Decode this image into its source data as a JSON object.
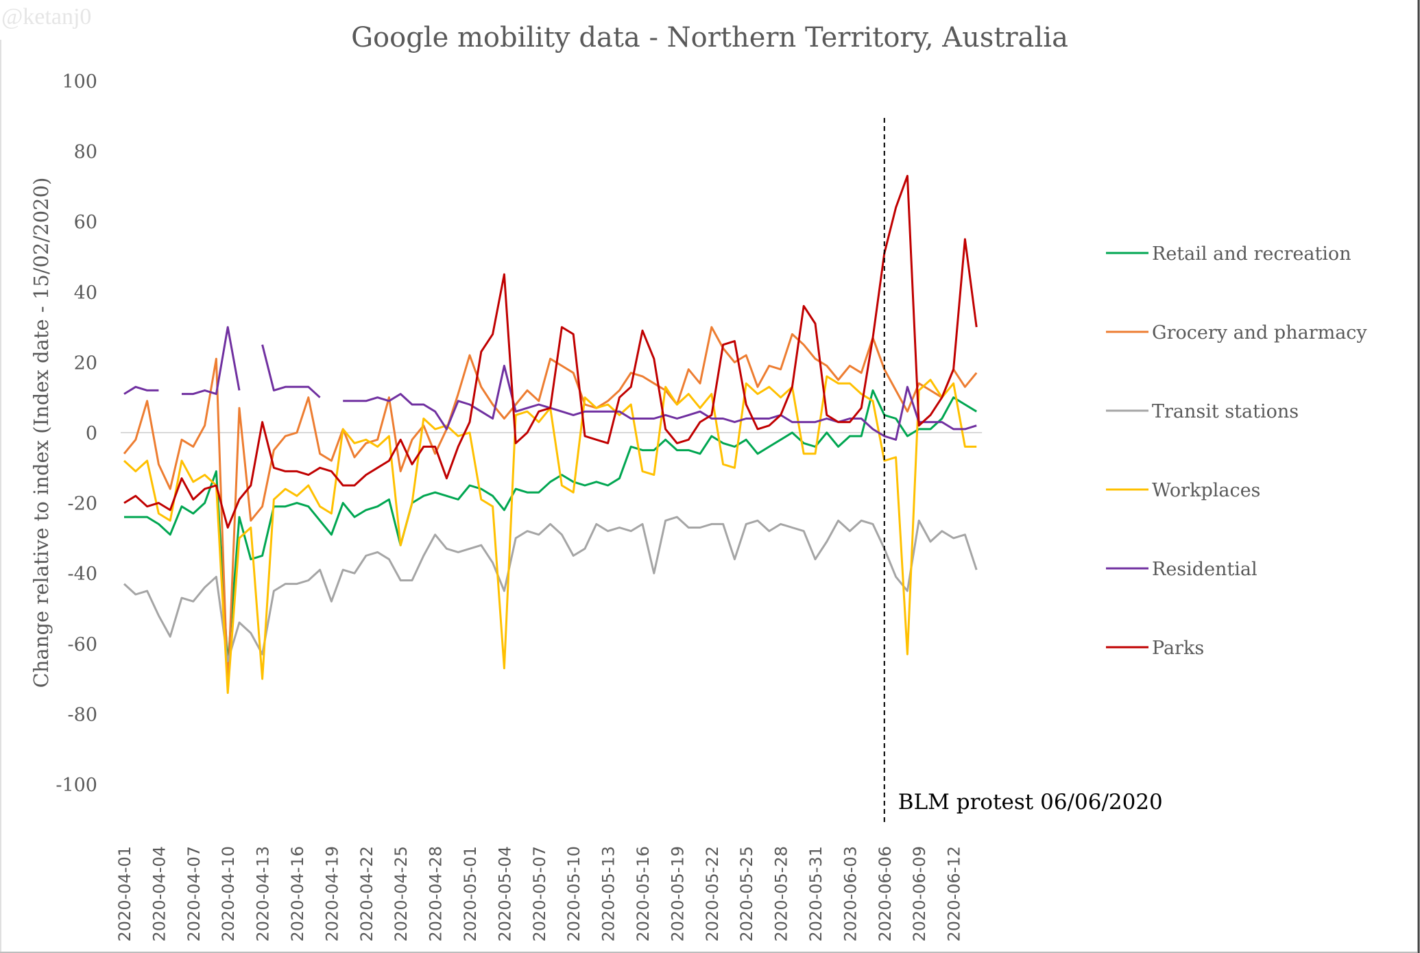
{
  "watermark": "@ketanj0",
  "chart_data": {
    "type": "line",
    "title": "Google mobility data - Northern Territory, Australia",
    "xlabel": "",
    "ylabel": "Change relative to index (Index date - 15/02/2020)",
    "ylim": [
      -100,
      100
    ],
    "yticks": [
      "100",
      "80",
      "60",
      "40",
      "20",
      "0",
      "-20",
      "-40",
      "-60",
      "-80",
      "-100"
    ],
    "ytick_values": [
      100,
      80,
      60,
      40,
      20,
      0,
      -20,
      -40,
      -60,
      -80,
      -100
    ],
    "grid": "zero line only",
    "legend_position": "right",
    "x": [
      "2020-04-01",
      "2020-04-02",
      "2020-04-03",
      "2020-04-04",
      "2020-04-05",
      "2020-04-06",
      "2020-04-07",
      "2020-04-08",
      "2020-04-09",
      "2020-04-10",
      "2020-04-11",
      "2020-04-12",
      "2020-04-13",
      "2020-04-14",
      "2020-04-15",
      "2020-04-16",
      "2020-04-17",
      "2020-04-18",
      "2020-04-19",
      "2020-04-20",
      "2020-04-21",
      "2020-04-22",
      "2020-04-23",
      "2020-04-24",
      "2020-04-25",
      "2020-04-26",
      "2020-04-27",
      "2020-04-28",
      "2020-04-29",
      "2020-04-30",
      "2020-05-01",
      "2020-05-02",
      "2020-05-03",
      "2020-05-04",
      "2020-05-05",
      "2020-05-06",
      "2020-05-07",
      "2020-05-08",
      "2020-05-09",
      "2020-05-10",
      "2020-05-11",
      "2020-05-12",
      "2020-05-13",
      "2020-05-14",
      "2020-05-15",
      "2020-05-16",
      "2020-05-17",
      "2020-05-18",
      "2020-05-19",
      "2020-05-20",
      "2020-05-21",
      "2020-05-22",
      "2020-05-23",
      "2020-05-24",
      "2020-05-25",
      "2020-05-26",
      "2020-05-27",
      "2020-05-28",
      "2020-05-29",
      "2020-05-30",
      "2020-05-31",
      "2020-06-01",
      "2020-06-02",
      "2020-06-03",
      "2020-06-04",
      "2020-06-05",
      "2020-06-06",
      "2020-06-07",
      "2020-06-08",
      "2020-06-09",
      "2020-06-10",
      "2020-06-11",
      "2020-06-12",
      "2020-06-13",
      "2020-06-14"
    ],
    "xtick_labels": [
      "2020-04-01",
      "2020-04-04",
      "2020-04-07",
      "2020-04-10",
      "2020-04-13",
      "2020-04-16",
      "2020-04-19",
      "2020-04-22",
      "2020-04-25",
      "2020-04-28",
      "2020-05-01",
      "2020-05-04",
      "2020-05-07",
      "2020-05-10",
      "2020-05-13",
      "2020-05-16",
      "2020-05-19",
      "2020-05-22",
      "2020-05-25",
      "2020-05-28",
      "2020-05-31",
      "2020-06-03",
      "2020-06-06",
      "2020-06-09",
      "2020-06-12"
    ],
    "series": [
      {
        "name": "Retail and recreation",
        "color": "#00a651",
        "values": [
          -24,
          -24,
          -24,
          -26,
          -29,
          -21,
          -23,
          -20,
          -11,
          -66,
          -24,
          -36,
          -35,
          -21,
          -21,
          -20,
          -21,
          -25,
          -29,
          -20,
          -24,
          -22,
          -21,
          -19,
          -32,
          -20,
          -18,
          -17,
          -18,
          -19,
          -15,
          -16,
          -18,
          -22,
          -16,
          -17,
          -17,
          -14,
          -12,
          -14,
          -15,
          -14,
          -15,
          -13,
          -4,
          -5,
          -5,
          -2,
          -5,
          -5,
          -6,
          -1,
          -3,
          -4,
          -2,
          -6,
          -4,
          -2,
          0,
          -3,
          -4,
          0,
          -4,
          -1,
          -1,
          12,
          5,
          4,
          -1,
          1,
          1,
          4,
          10,
          8,
          6
        ]
      },
      {
        "name": "Grocery and pharmacy",
        "color": "#ed7d31",
        "values": [
          -6,
          -2,
          9,
          -9,
          -16,
          -2,
          -4,
          2,
          21,
          -73,
          7,
          -25,
          -21,
          -5,
          -1,
          0,
          10,
          -6,
          -8,
          1,
          -7,
          -3,
          -2,
          10,
          -11,
          -2,
          2,
          -6,
          1,
          11,
          22,
          13,
          8,
          4,
          8,
          12,
          9,
          21,
          19,
          17,
          8,
          7,
          9,
          12,
          17,
          16,
          14,
          12,
          8,
          18,
          14,
          30,
          24,
          20,
          22,
          13,
          19,
          18,
          28,
          25,
          21,
          19,
          15,
          19,
          17,
          27,
          18,
          12,
          6,
          14,
          12,
          10,
          18,
          13,
          17
        ]
      },
      {
        "name": "Transit stations",
        "color": "#a5a5a5",
        "values": [
          -43,
          -46,
          -45,
          -52,
          -58,
          -47,
          -48,
          -44,
          -41,
          -65,
          -54,
          -57,
          -63,
          -45,
          -43,
          -43,
          -42,
          -39,
          -48,
          -39,
          -40,
          -35,
          -34,
          -36,
          -42,
          -42,
          -35,
          -29,
          -33,
          -34,
          -33,
          -32,
          -37,
          -45,
          -30,
          -28,
          -29,
          -26,
          -29,
          -35,
          -33,
          -26,
          -28,
          -27,
          -28,
          -26,
          -40,
          -25,
          -24,
          -27,
          -27,
          -26,
          -26,
          -36,
          -26,
          -25,
          -28,
          -26,
          -27,
          -28,
          -36,
          -31,
          -25,
          -28,
          -25,
          -26,
          -33,
          -41,
          -45,
          -25,
          -31,
          -28,
          -30,
          -29,
          -39
        ]
      },
      {
        "name": "Workplaces",
        "color": "#ffc000",
        "values": [
          -8,
          -11,
          -8,
          -23,
          -25,
          -8,
          -14,
          -12,
          -15,
          -74,
          -30,
          -27,
          -70,
          -19,
          -16,
          -18,
          -15,
          -21,
          -23,
          1,
          -3,
          -2,
          -4,
          -1,
          -32,
          -20,
          4,
          1,
          2,
          -1,
          0,
          -19,
          -21,
          -67,
          5,
          6,
          3,
          7,
          -15,
          -17,
          10,
          7,
          8,
          5,
          8,
          -11,
          -12,
          13,
          8,
          11,
          7,
          11,
          -9,
          -10,
          14,
          11,
          13,
          10,
          13,
          -6,
          -6,
          16,
          14,
          14,
          11,
          9,
          -8,
          -7,
          -63,
          12,
          15,
          10,
          14,
          -4,
          -4
        ]
      },
      {
        "name": "Residential",
        "color": "#7030a0",
        "values": [
          11,
          13,
          12,
          12,
          null,
          11,
          11,
          12,
          11,
          30,
          12,
          null,
          25,
          12,
          13,
          13,
          13,
          10,
          null,
          9,
          9,
          9,
          10,
          9,
          11,
          8,
          8,
          6,
          1,
          9,
          8,
          6,
          4,
          19,
          6,
          7,
          8,
          7,
          6,
          5,
          6,
          6,
          6,
          6,
          4,
          4,
          4,
          5,
          4,
          5,
          6,
          4,
          4,
          3,
          4,
          4,
          4,
          5,
          3,
          3,
          3,
          4,
          3,
          4,
          4,
          1,
          -1,
          -2,
          13,
          3,
          3,
          3,
          1,
          1,
          2
        ]
      },
      {
        "name": "Parks",
        "color": "#c00000",
        "values": [
          -20,
          -18,
          -21,
          -20,
          -22,
          -13,
          -19,
          -16,
          -15,
          -27,
          -19,
          -15,
          3,
          -10,
          -11,
          -11,
          -12,
          -10,
          -11,
          -15,
          -15,
          -12,
          -10,
          -8,
          -2,
          -9,
          -4,
          -4,
          -13,
          -4,
          3,
          23,
          28,
          45,
          -3,
          0,
          6,
          7,
          30,
          28,
          -1,
          -2,
          -3,
          10,
          13,
          29,
          21,
          1,
          -3,
          -2,
          3,
          5,
          25,
          26,
          8,
          1,
          2,
          5,
          13,
          36,
          31,
          5,
          3,
          3,
          7,
          27,
          51,
          64,
          73,
          2,
          5,
          10,
          18,
          55,
          30
        ]
      }
    ],
    "annotations": [
      {
        "text": "BLM protest 06/06/2020",
        "x": "2020-06-06",
        "style": "dashed vertical line"
      }
    ]
  }
}
